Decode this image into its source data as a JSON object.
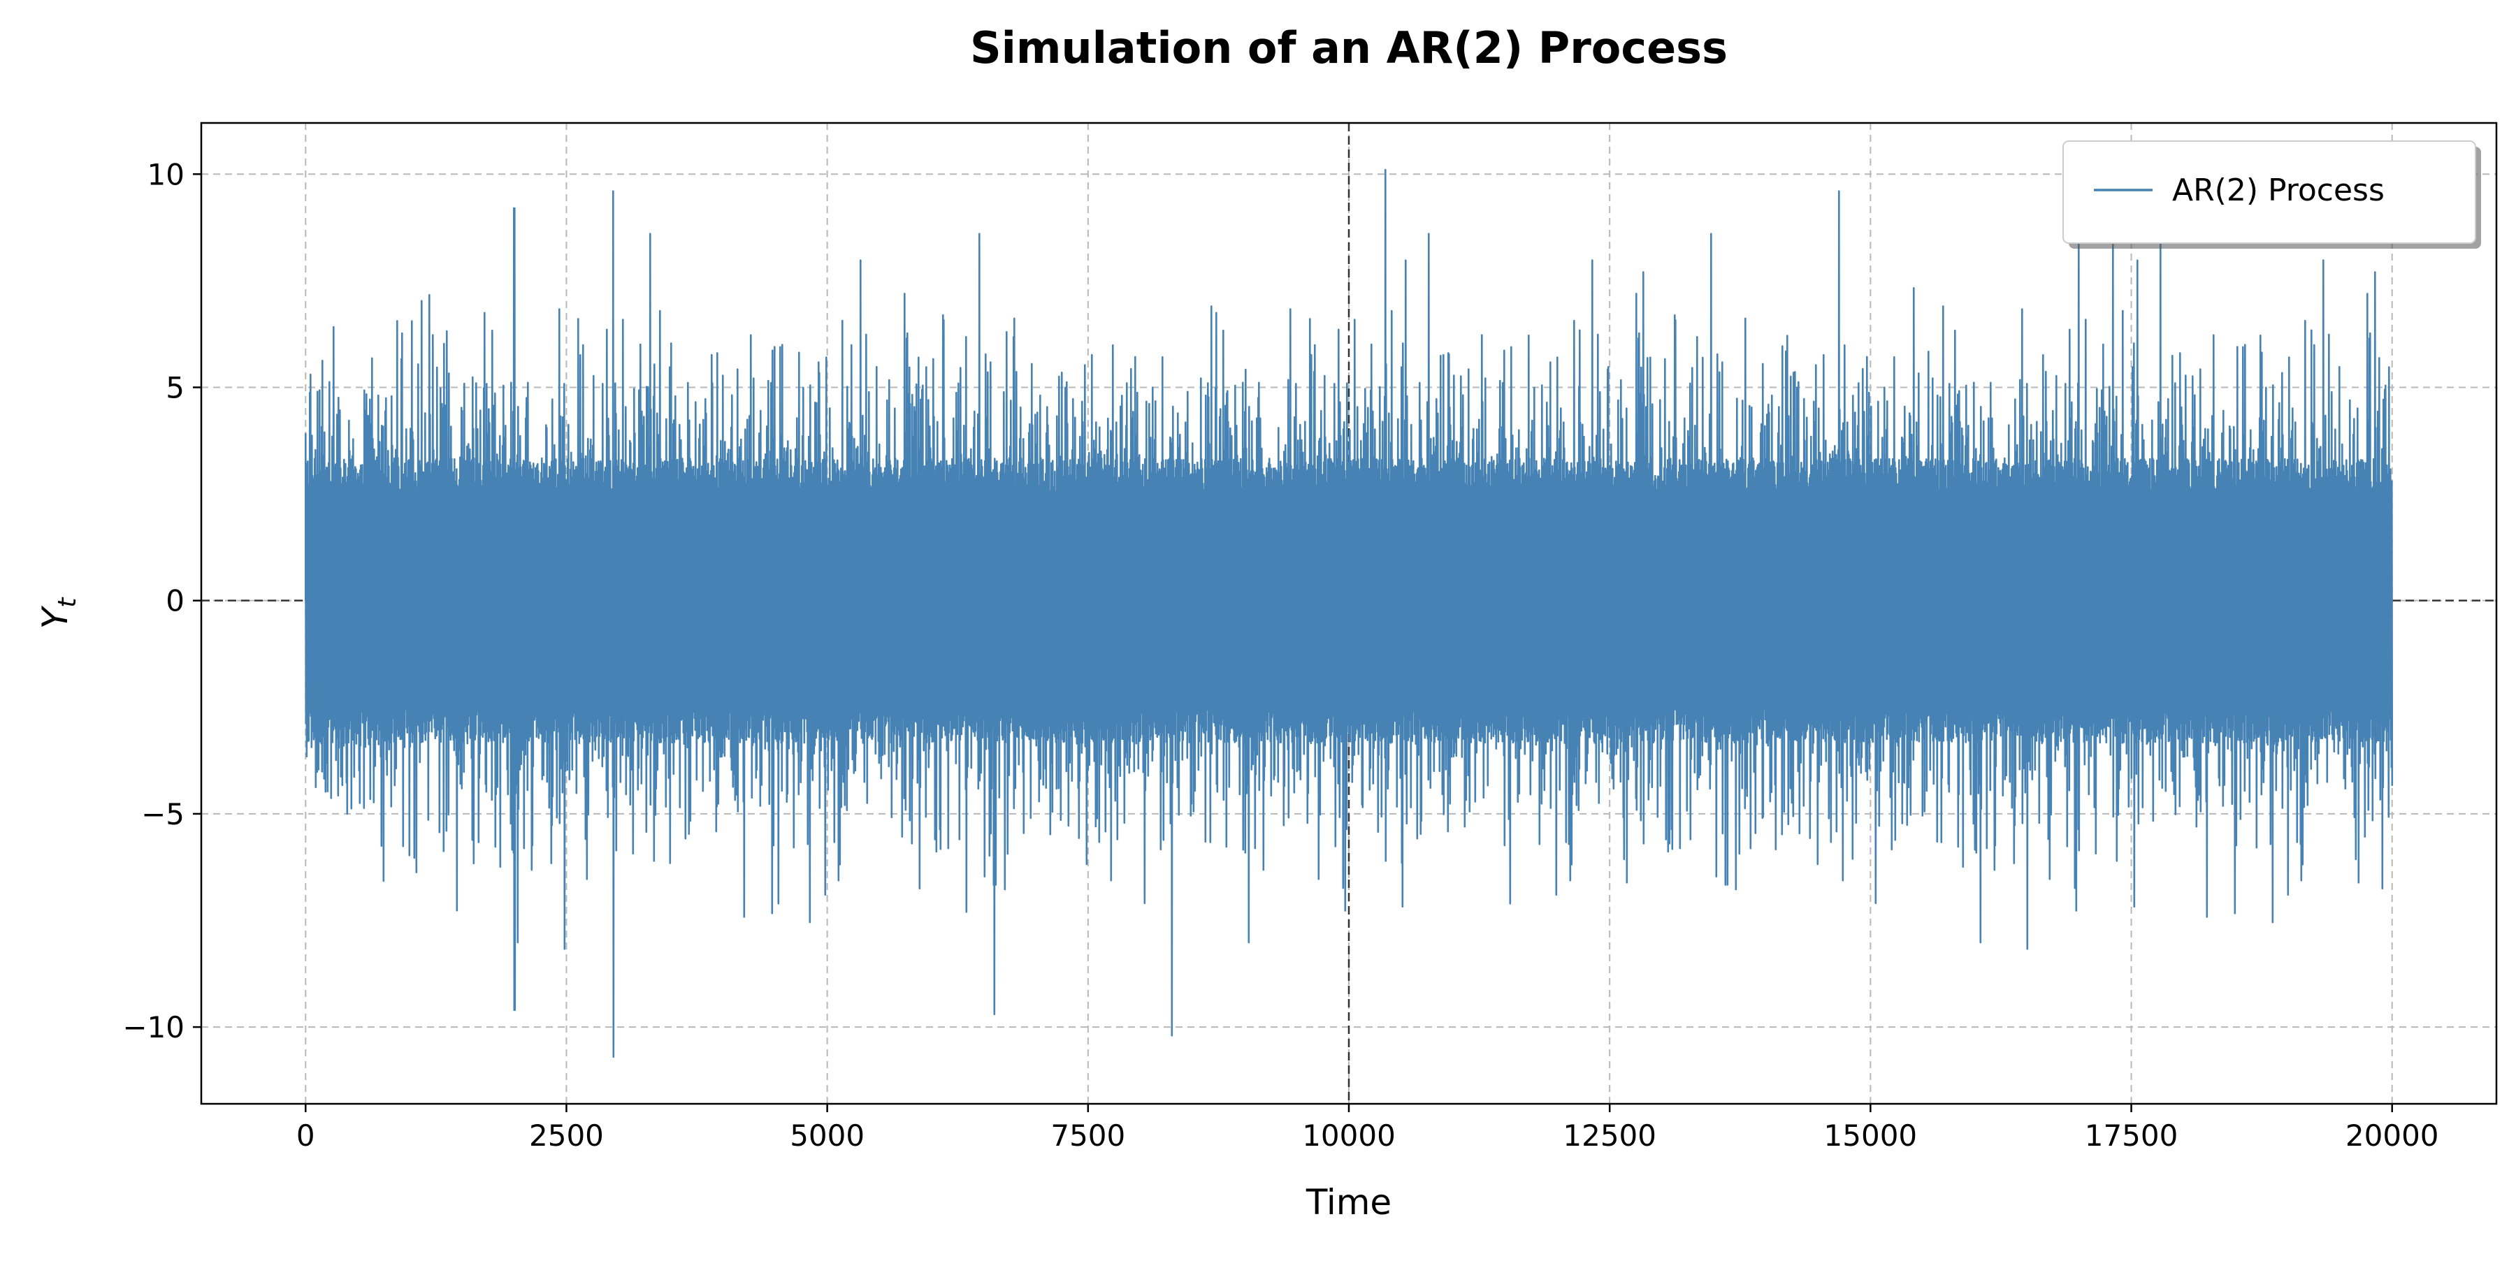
{
  "chart_data": {
    "type": "line",
    "title": "Simulation of an AR(2) Process",
    "xlabel": "Time",
    "ylabel_main": "Y",
    "ylabel_sub": "t",
    "xlim": [
      -1000,
      21000
    ],
    "ylim": [
      -11.8,
      11.2
    ],
    "xticks": [
      0,
      2500,
      5000,
      7500,
      10000,
      12500,
      15000,
      17500,
      20000
    ],
    "xtick_labels": [
      "0",
      "2500",
      "5000",
      "7500",
      "10000",
      "12500",
      "15000",
      "17500",
      "20000"
    ],
    "yticks": [
      -10,
      -5,
      0,
      5,
      10
    ],
    "ytick_labels": [
      "−10",
      "−5",
      "0",
      "5",
      "10"
    ],
    "grid": true,
    "legend_position": "top-right",
    "reference_lines": {
      "horizontal_y": 0,
      "vertical_x": 10000
    },
    "series": [
      {
        "name": "AR(2) Process",
        "color": "#4682b4",
        "n_points": 20000,
        "approx_std": 2.3,
        "notable_extremes": [
          {
            "x": 2000,
            "y": 9.2
          },
          {
            "x": 2000,
            "y": -9.6
          },
          {
            "x": 2950,
            "y": 9.6
          },
          {
            "x": 2950,
            "y": -10.7
          },
          {
            "x": 6600,
            "y": -9.7
          },
          {
            "x": 8300,
            "y": -10.2
          },
          {
            "x": 10350,
            "y": 10.1
          },
          {
            "x": 14700,
            "y": 9.6
          },
          {
            "x": 17000,
            "y": 8.7
          }
        ]
      }
    ]
  }
}
